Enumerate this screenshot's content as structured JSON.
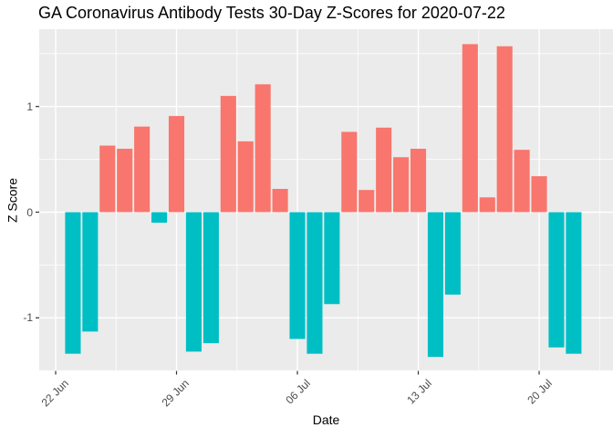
{
  "title": "GA Coronavirus Antibody Tests 30-Day Z-Scores for 2020-07-22",
  "chart_data": {
    "type": "bar",
    "title": "GA Coronavirus Antibody Tests 30-Day Z-Scores for 2020-07-22",
    "xlabel": "Date",
    "ylabel": "Z Score",
    "dates": [
      "2020-06-23",
      "2020-06-24",
      "2020-06-25",
      "2020-06-26",
      "2020-06-27",
      "2020-06-28",
      "2020-06-29",
      "2020-06-30",
      "2020-07-01",
      "2020-07-02",
      "2020-07-03",
      "2020-07-04",
      "2020-07-05",
      "2020-07-06",
      "2020-07-07",
      "2020-07-08",
      "2020-07-09",
      "2020-07-10",
      "2020-07-11",
      "2020-07-12",
      "2020-07-13",
      "2020-07-14",
      "2020-07-15",
      "2020-07-16",
      "2020-07-17",
      "2020-07-18",
      "2020-07-19",
      "2020-07-20",
      "2020-07-21",
      "2020-07-22"
    ],
    "values": [
      -1.34,
      -1.13,
      0.63,
      0.6,
      0.81,
      -0.1,
      0.91,
      -1.32,
      -1.24,
      1.1,
      0.67,
      1.21,
      0.22,
      -1.2,
      -1.34,
      -0.87,
      0.76,
      0.21,
      0.8,
      0.52,
      0.6,
      -1.37,
      -0.78,
      1.59,
      0.14,
      1.57,
      0.59,
      0.34,
      -1.28,
      -1.34
    ],
    "bar_day_offset": 1,
    "x_ticks": [
      {
        "label": "22 Jun",
        "day": 0
      },
      {
        "label": "29 Jun",
        "day": 7
      },
      {
        "label": "06 Jul",
        "day": 14
      },
      {
        "label": "13 Jul",
        "day": 21
      },
      {
        "label": "20 Jul",
        "day": 28
      }
    ],
    "x_minor_days": [
      3.5,
      10.5,
      17.5,
      24.5,
      31.5
    ],
    "y_ticks_major": [
      {
        "value": -1,
        "label": "-1"
      },
      {
        "value": 0,
        "label": "0"
      },
      {
        "value": 1,
        "label": "1"
      }
    ],
    "y_ticks_minor": [
      -1.5,
      -0.5,
      0.5,
      1.5
    ],
    "ylim": [
      -1.51,
      1.74
    ],
    "grid": "major-and-minor",
    "legend": "none",
    "colors": {
      "positive_bar": "#F8766D",
      "negative_bar": "#00BFC4",
      "panel_background": "#EBEBEB",
      "gridline": "#FFFFFF",
      "axis_text": "#4D4D4D",
      "tick_mark": "#333333",
      "title_text": "#000000"
    }
  }
}
